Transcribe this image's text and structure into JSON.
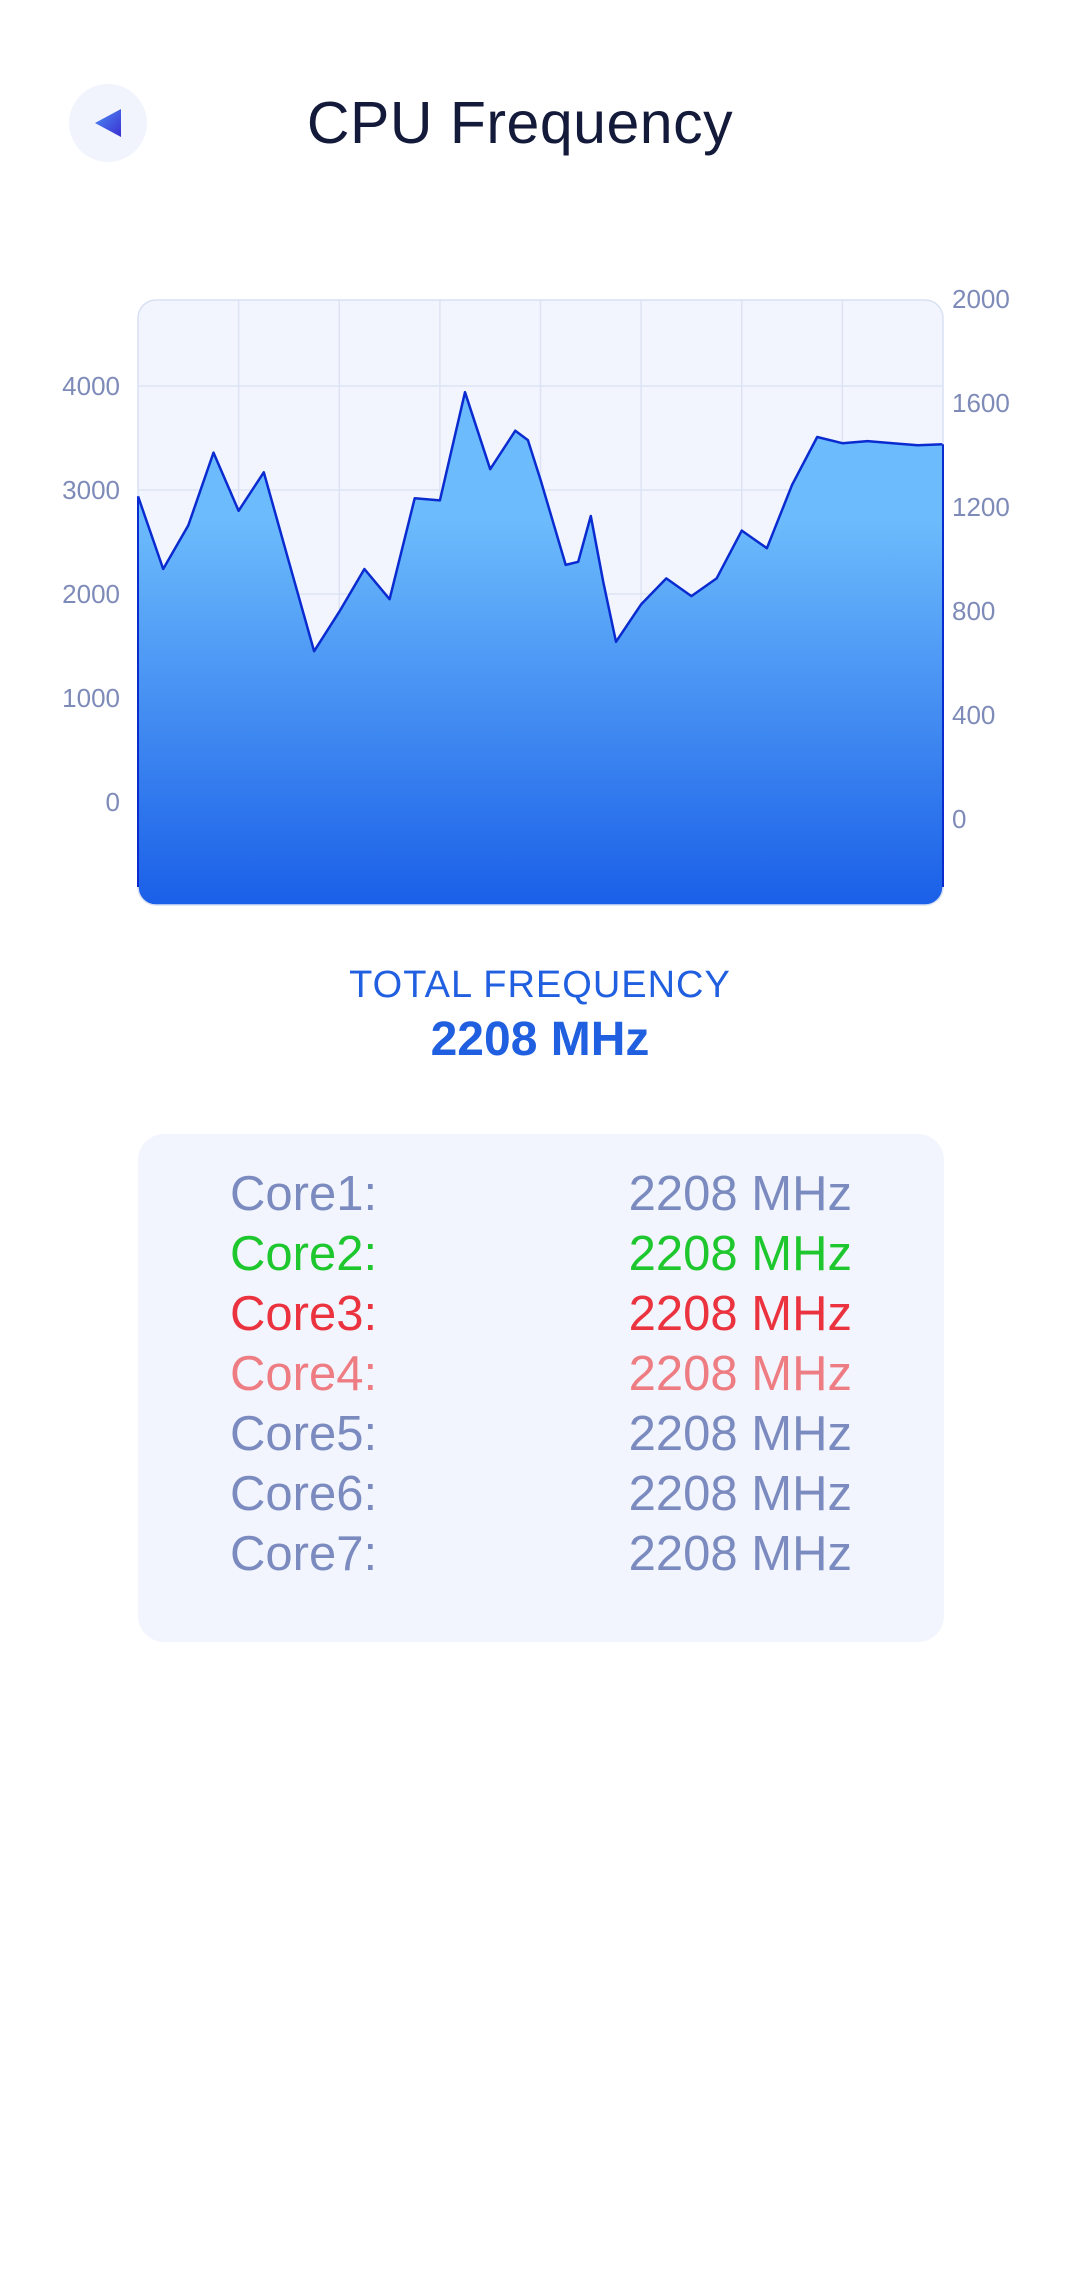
{
  "header": {
    "title": "CPU Frequency",
    "back_icon": "back-triangle-icon"
  },
  "colors": {
    "accent": "#1f5fe0",
    "line": "#0a2bd0",
    "fill_top": "#6cbbfc",
    "fill_bottom": "#1a5fe8",
    "plot_bg": "#f2f5fd",
    "grid": "#dde3f4",
    "axis_text": "#7e8bb8"
  },
  "chart_data": {
    "type": "area",
    "x": [
      0,
      1,
      2,
      3,
      4,
      5,
      6,
      7,
      8,
      9,
      10,
      11,
      12,
      13,
      14,
      15,
      15.5,
      16,
      17,
      17.5,
      18,
      18.5,
      19,
      20,
      21,
      22,
      23,
      24,
      25,
      26,
      27,
      28,
      29,
      30,
      31,
      32
    ],
    "values": [
      2940,
      2240,
      2660,
      3360,
      2800,
      3170,
      2310,
      1450,
      1830,
      2240,
      1950,
      2920,
      2900,
      3940,
      3200,
      3570,
      3480,
      3100,
      2280,
      2310,
      2750,
      2110,
      1540,
      1900,
      2150,
      1980,
      2150,
      2610,
      2440,
      3050,
      3510,
      3450,
      3470,
      3450,
      3430,
      3440
    ],
    "left_axis": {
      "ticks": [
        "0",
        "1000",
        "2000",
        "3000",
        "4000"
      ],
      "range": [
        0,
        4000
      ]
    },
    "right_axis": {
      "ticks": [
        "0",
        "400",
        "800",
        "1200",
        "1600",
        "2000"
      ],
      "range": [
        0,
        2000
      ]
    },
    "grid": true
  },
  "total": {
    "label": "TOTAL FREQUENCY",
    "value": "2208 MHz"
  },
  "cores": [
    {
      "name": "Core1:",
      "value": "2208 MHz",
      "color": "#7b8bbf"
    },
    {
      "name": "Core2:",
      "value": "2208 MHz",
      "color": "#1ec72e"
    },
    {
      "name": "Core3:",
      "value": "2208 MHz",
      "color": "#eb3340"
    },
    {
      "name": "Core4:",
      "value": "2208 MHz",
      "color": "#ee7d83"
    },
    {
      "name": "Core5:",
      "value": "2208 MHz",
      "color": "#7b8bbf"
    },
    {
      "name": "Core6:",
      "value": "2208 MHz",
      "color": "#7b8bbf"
    },
    {
      "name": "Core7:",
      "value": "2208 MHz",
      "color": "#7b8bbf"
    }
  ]
}
